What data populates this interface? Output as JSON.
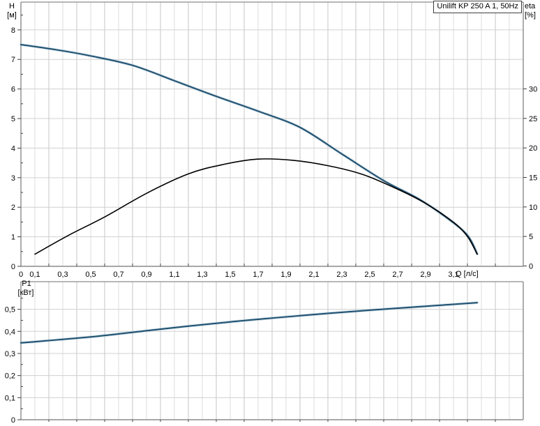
{
  "title_box": "Unilift KP 250 A 1, 50Hz",
  "colors": {
    "curve_blue": "#20506f",
    "curve_blue_halo": "#9cbdd2",
    "curve_black": "#000000",
    "grid_light": "#dcdcdc",
    "grid_dark": "#c6c6c6",
    "grid_horizontal": "#d0d0d0",
    "axis": "#8a8a8a",
    "tick": "#404040",
    "text": "#000000",
    "background": "#ffffff"
  },
  "chart_data": [
    {
      "type": "line",
      "title": "Unilift KP 250 A 1, 50Hz",
      "grid": true,
      "legend": "none",
      "x_axis": {
        "label": "Q [л/с]",
        "min": 0,
        "max": 3.6,
        "gridline_step": 0.1,
        "minor_tick_step": 0.2,
        "tick_values": [
          0,
          0.1,
          0.3,
          0.5,
          0.7,
          0.9,
          1.1,
          1.3,
          1.5,
          1.7,
          1.9,
          2.1,
          2.3,
          2.5,
          2.7,
          2.9,
          3.1
        ],
        "tick_labels": [
          "0",
          "0,1",
          "0,3",
          "0,5",
          "0,7",
          "0,9",
          "1,1",
          "1,3",
          "1,5",
          "1,7",
          "1,9",
          "2,1",
          "2,3",
          "2,5",
          "2,7",
          "2,9",
          "3,1"
        ]
      },
      "y_axis": {
        "name": "H",
        "unit": "[м]",
        "min": 0,
        "max": 8.94,
        "gridline_step": 1,
        "minor_tick_step": 0.5,
        "tick_values": [
          0,
          1,
          2,
          3,
          4,
          5,
          6,
          7,
          8
        ],
        "tick_labels": [
          "0",
          "1",
          "2",
          "3",
          "4",
          "5",
          "6",
          "7",
          "8"
        ]
      },
      "y2_axis": {
        "name": "eta",
        "unit": "[%]",
        "min": 0,
        "max": 44.7,
        "tick_values": [
          0,
          5,
          10,
          15,
          20,
          25,
          30
        ],
        "tick_labels": [
          "0",
          "5",
          "10",
          "15",
          "20",
          "25",
          "30"
        ]
      },
      "series": [
        {
          "name": "head-curve",
          "axis": "y",
          "color": "#20506f",
          "halo": "#9cbdd2",
          "width": 2,
          "points": [
            [
              0,
              7.5
            ],
            [
              0.25,
              7.33
            ],
            [
              0.5,
              7.12
            ],
            [
              0.8,
              6.8
            ],
            [
              1.1,
              6.28
            ],
            [
              1.4,
              5.75
            ],
            [
              1.7,
              5.25
            ],
            [
              2.0,
              4.7
            ],
            [
              2.3,
              3.8
            ],
            [
              2.6,
              2.9
            ],
            [
              2.85,
              2.28
            ],
            [
              3.05,
              1.65
            ],
            [
              3.2,
              1.05
            ],
            [
              3.27,
              0.42
            ]
          ]
        },
        {
          "name": "eta-curve",
          "axis": "y2",
          "color": "#000000",
          "halo": null,
          "width": 1.6,
          "points": [
            [
              0.1,
              2.0
            ],
            [
              0.35,
              5.3
            ],
            [
              0.6,
              8.3
            ],
            [
              0.9,
              12.3
            ],
            [
              1.2,
              15.6
            ],
            [
              1.45,
              17.2
            ],
            [
              1.7,
              18.1
            ],
            [
              1.95,
              17.9
            ],
            [
              2.2,
              17.0
            ],
            [
              2.45,
              15.5
            ],
            [
              2.7,
              13.0
            ],
            [
              2.9,
              10.6
            ],
            [
              3.1,
              7.4
            ],
            [
              3.2,
              5.0
            ],
            [
              3.27,
              2.0
            ]
          ]
        }
      ]
    },
    {
      "type": "line",
      "title": "",
      "grid": true,
      "legend": "none",
      "x_axis": {
        "label": "",
        "min": 0,
        "max": 3.6,
        "gridline_step": 0.1,
        "minor_tick_step": 0.2,
        "tick_values": [],
        "tick_labels": []
      },
      "y_axis": {
        "name": "P1",
        "unit": "[кВт]",
        "min": 0,
        "max": 0.625,
        "gridline_step": 0.1,
        "minor_tick_step": 0.05,
        "tick_values": [
          0,
          0.1,
          0.2,
          0.3,
          0.4,
          0.5
        ],
        "tick_labels": [
          "0",
          "0,1",
          "0,2",
          "0,3",
          "0,4",
          "0,5"
        ]
      },
      "series": [
        {
          "name": "p1-curve",
          "axis": "y",
          "color": "#20506f",
          "halo": "#9cbdd2",
          "width": 2,
          "points": [
            [
              0,
              0.348
            ],
            [
              0.5,
              0.375
            ],
            [
              1.0,
              0.41
            ],
            [
              1.5,
              0.443
            ],
            [
              2.0,
              0.471
            ],
            [
              2.5,
              0.496
            ],
            [
              3.0,
              0.518
            ],
            [
              3.27,
              0.53
            ]
          ]
        }
      ]
    }
  ]
}
